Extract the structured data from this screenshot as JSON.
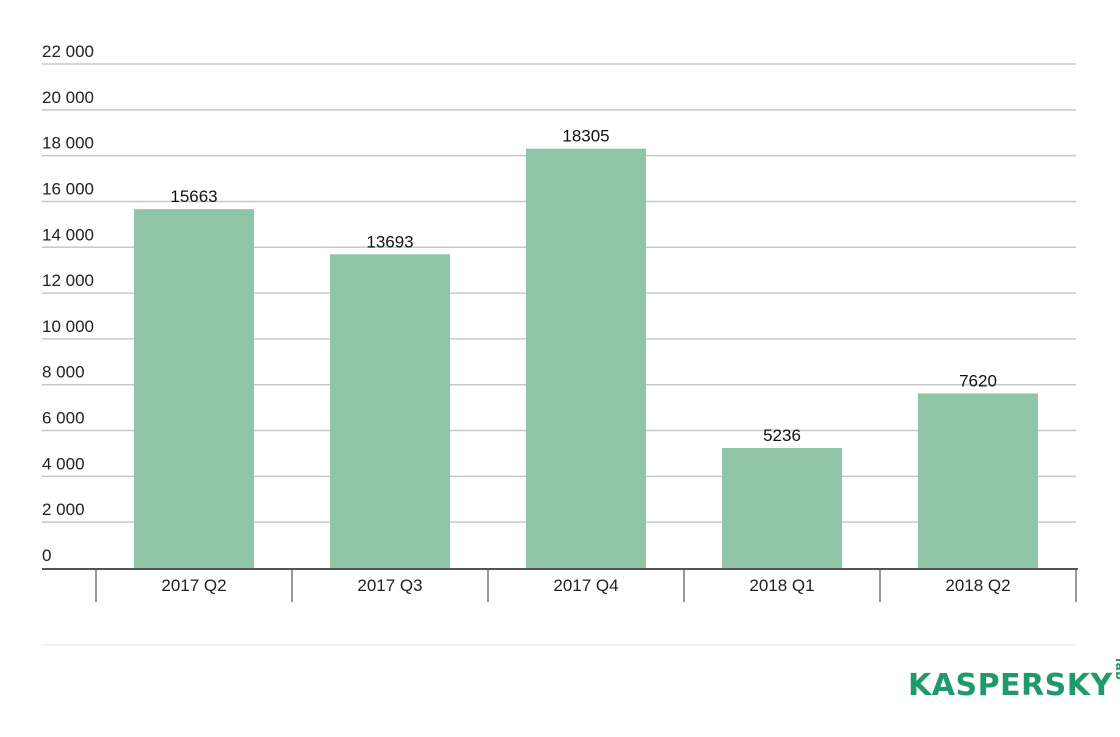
{
  "chart_data": {
    "type": "bar",
    "categories": [
      "2017 Q2",
      "2017 Q3",
      "2017 Q4",
      "2018 Q1",
      "2018 Q2"
    ],
    "values": [
      15663,
      13693,
      18305,
      5236,
      7620
    ],
    "data_labels": [
      "15663",
      "13693",
      "18305",
      "5236",
      "7620"
    ],
    "y_ticks": [
      0,
      2000,
      4000,
      6000,
      8000,
      10000,
      12000,
      14000,
      16000,
      18000,
      20000,
      22000
    ],
    "y_tick_labels": [
      "0",
      "2 000",
      "4 000",
      "6 000",
      "8 000",
      "10 000",
      "12 000",
      "14 000",
      "16 000",
      "18 000",
      "20 000",
      "22 000"
    ],
    "ylim": [
      0,
      22000
    ],
    "grid": true,
    "title": "",
    "xlabel": "",
    "ylabel": "",
    "bar_color": "#8fc4a7"
  },
  "brand": {
    "logo_text": "KASPERSKY",
    "logo_sub": "lab",
    "color": "#1f9a6b"
  }
}
